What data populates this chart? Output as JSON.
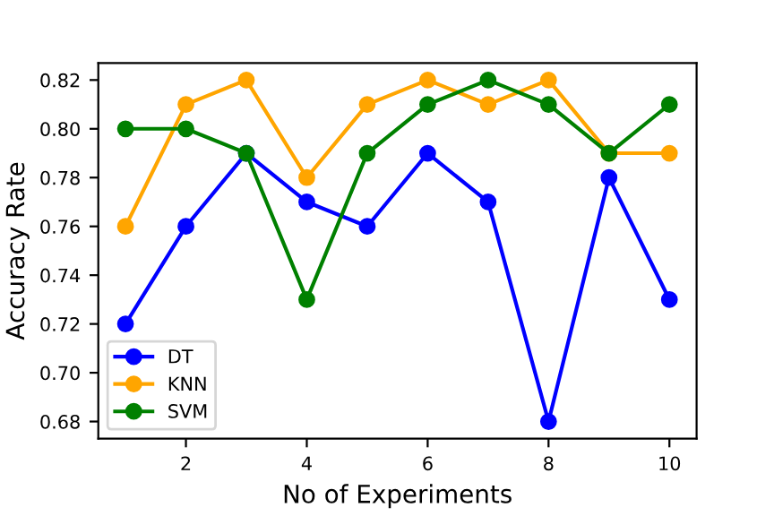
{
  "chart_data": {
    "type": "line",
    "xlabel": "No of Experiments",
    "ylabel": "Accuracy Rate",
    "x": [
      1,
      2,
      3,
      4,
      5,
      6,
      7,
      8,
      9,
      10
    ],
    "series": [
      {
        "name": "DT",
        "color": "#0000ff",
        "values": [
          0.72,
          0.76,
          0.79,
          0.77,
          0.76,
          0.79,
          0.77,
          0.68,
          0.78,
          0.73
        ]
      },
      {
        "name": "KNN",
        "color": "#ffa500",
        "values": [
          0.76,
          0.81,
          0.82,
          0.78,
          0.81,
          0.82,
          0.81,
          0.82,
          0.79,
          0.79
        ]
      },
      {
        "name": "SVM",
        "color": "#008000",
        "values": [
          0.8,
          0.8,
          0.79,
          0.73,
          0.79,
          0.81,
          0.82,
          0.81,
          0.79,
          0.81
        ]
      }
    ],
    "xlim": [
      0.55,
      10.45
    ],
    "xticks": [
      2,
      4,
      6,
      8,
      10
    ],
    "ylim": [
      0.673,
      0.827
    ],
    "yticks": [
      {
        "value": 0.68,
        "label": "0.68"
      },
      {
        "value": 0.7,
        "label": "0.70"
      },
      {
        "value": 0.72,
        "label": "0.72"
      },
      {
        "value": 0.74,
        "label": "0.74"
      },
      {
        "value": 0.76,
        "label": "0.76"
      },
      {
        "value": 0.78,
        "label": "0.78"
      },
      {
        "value": 0.8,
        "label": "0.80"
      },
      {
        "value": 0.82,
        "label": "0.82"
      }
    ],
    "marker": "circle",
    "line_style": "solid",
    "grid": false,
    "legend": "bottom left"
  }
}
